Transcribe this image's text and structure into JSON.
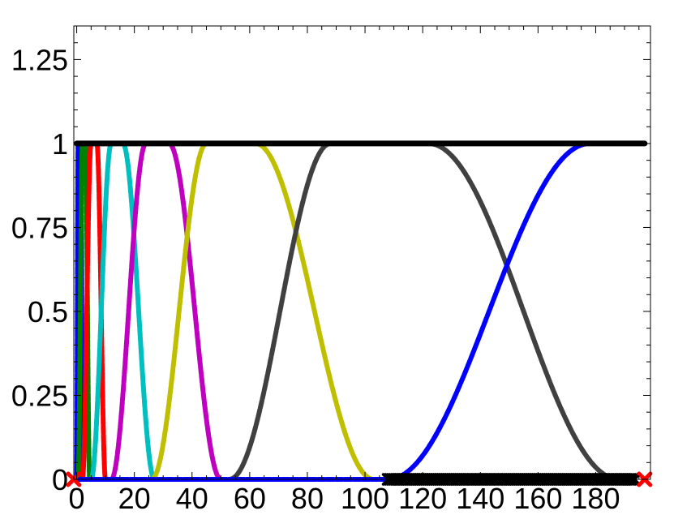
{
  "chart_data": {
    "type": "line",
    "title": "",
    "xlabel": "",
    "ylabel": "",
    "xlim": [
      -1,
      199
    ],
    "ylim": [
      0,
      1.35
    ],
    "x_ticks": [
      0,
      20,
      40,
      60,
      80,
      100,
      120,
      140,
      160,
      180
    ],
    "x_tick_labels": [
      "0",
      "20",
      "40",
      "60",
      "80",
      "100",
      "120",
      "140",
      "160",
      "180"
    ],
    "y_ticks": [
      0,
      0.25,
      0.5,
      0.75,
      1,
      1.25
    ],
    "y_tick_labels": [
      "0",
      "0.25",
      "0.5",
      "0.75",
      "1",
      "1.25"
    ],
    "grid": false,
    "legend": "none",
    "series": [
      {
        "color": "#0000ff",
        "kind": "bump",
        "start": 0,
        "peak_start": 0.5,
        "peak_end": 1.5,
        "end": 2
      },
      {
        "color": "#008000",
        "kind": "bump",
        "start": 0.5,
        "peak_start": 2,
        "peak_end": 3,
        "end": 4.5
      },
      {
        "color": "#ff0000",
        "kind": "bump",
        "start": 2,
        "peak_start": 5,
        "peak_end": 7,
        "end": 10
      },
      {
        "color": "#00bfbf",
        "kind": "bump",
        "start": 5,
        "peak_start": 12,
        "peak_end": 16,
        "end": 27
      },
      {
        "color": "#bf00bf",
        "kind": "bump",
        "start": 12,
        "peak_start": 24,
        "peak_end": 32,
        "end": 50
      },
      {
        "color": "#bfbf00",
        "kind": "bump",
        "start": 26,
        "peak_start": 45,
        "peak_end": 62,
        "end": 103
      },
      {
        "color": "#404040",
        "kind": "bump",
        "start": 53,
        "peak_start": 88,
        "peak_end": 122,
        "end": 188
      },
      {
        "color": "#0000ff",
        "kind": "rise",
        "flat_end": 108,
        "start": 108,
        "peak_start": 178,
        "end": 197
      },
      {
        "color": "#000000",
        "kind": "constant",
        "x_range": [
          0,
          197
        ],
        "value": 1
      }
    ],
    "markers": [
      {
        "shape": "x",
        "color": "#000000",
        "x_range": [
          108,
          194
        ],
        "step": 0.7,
        "y": 0
      },
      {
        "shape": "x",
        "color": "#ff0000",
        "x": [
          -1,
          197
        ],
        "y": 0
      }
    ]
  }
}
